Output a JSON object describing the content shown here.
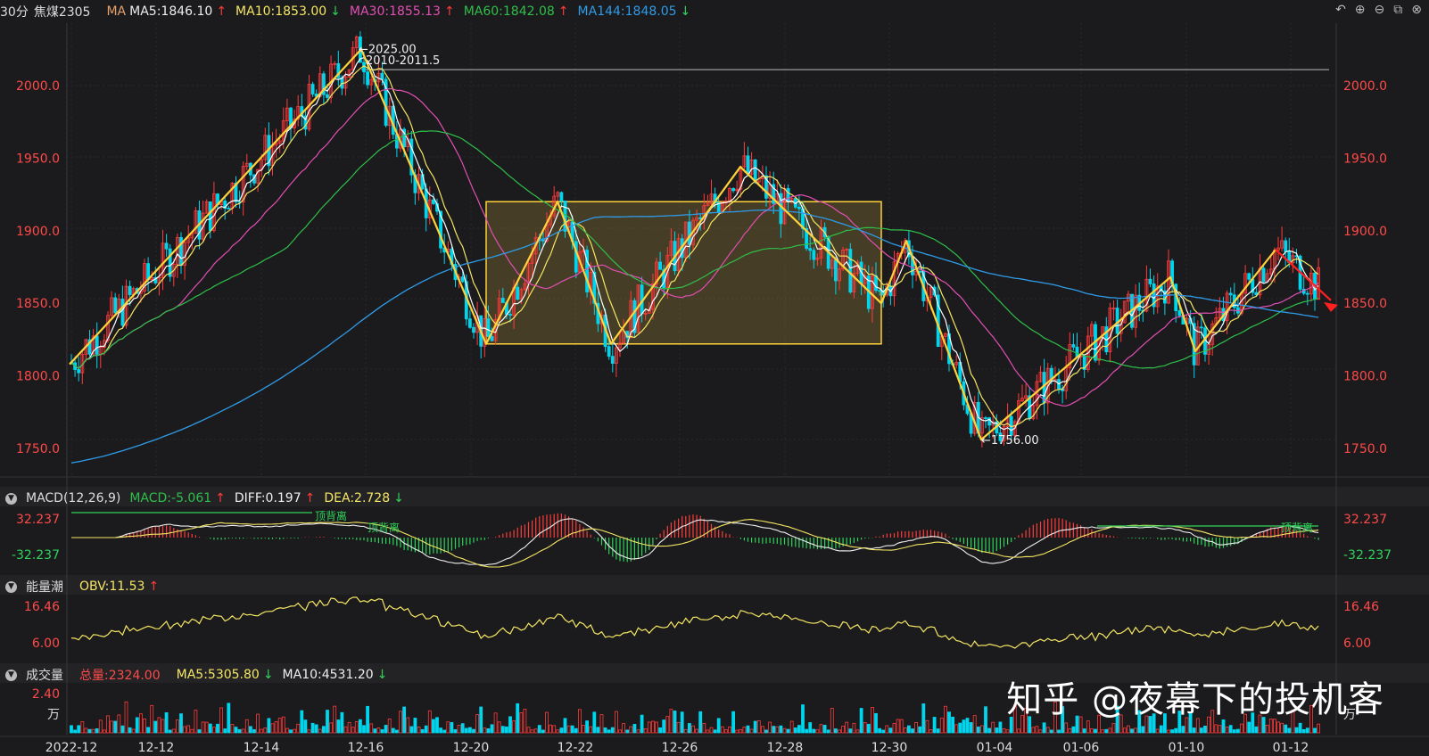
{
  "header": {
    "period": "30分",
    "symbol": "焦煤2305",
    "ma_label": "MA",
    "ma5": "MA5:1846.10",
    "ma10": "MA10:1853.00",
    "ma30": "MA30:1855.13",
    "ma60": "MA60:1842.08",
    "ma144": "MA144:1848.05"
  },
  "toolbar": {
    "undo": "↶",
    "zoom_in": "⊕",
    "zoom_out": "⊖",
    "layout": "⧉",
    "close": "⊗"
  },
  "price_axis": {
    "ticks": [
      "2000.0",
      "1950.0",
      "1900.0",
      "1850.0",
      "1800.0",
      "1750.0"
    ]
  },
  "annotations": {
    "high": "←2025.00",
    "range": "2010-2011.5",
    "low": "←1756.00"
  },
  "macd_panel": {
    "title": "MACD(12,26,9)",
    "macd": "MACD:-5.061",
    "diff": "DIFF:0.197",
    "dea": "DEA:2.728",
    "top": "32.237",
    "bottom": "-32.237",
    "div_label_1": "顶背离",
    "div_label_2": "顶背离",
    "div_label_3": "顶背离"
  },
  "obv_panel": {
    "title": "能量潮",
    "obv": "OBV:11.53",
    "top": "16.46",
    "bottom": "6.00"
  },
  "vol_panel": {
    "title": "成交量",
    "total": "总量:2324.00",
    "ma5": "MA5:5305.80",
    "ma10": "MA10:4531.20",
    "top": "2.40",
    "unit": "万"
  },
  "x_axis": {
    "labels": [
      "2022-12",
      "12-12",
      "12-14",
      "12-16",
      "12-20",
      "12-22",
      "12-26",
      "12-28",
      "12-30",
      "01-04",
      "01-06",
      "01-10",
      "01-12"
    ]
  },
  "watermark": "知乎 @夜幕下的投机客",
  "colors": {
    "up": "#ff3b3b",
    "down": "#00d5ee",
    "ma5": "#ffffff",
    "ma10": "#f5e663",
    "ma30": "#e24fb3",
    "ma60": "#2fbf4a",
    "ma144": "#2f9be8",
    "pattern": "#ffd23a",
    "arrow": "#ff2020",
    "axis_text": "#ff4a4a"
  },
  "chart_data": {
    "type": "candlestick",
    "title": "焦煤2305 30分",
    "y_range": [
      1735,
      2040
    ],
    "categories": [
      "2022-12",
      "12-12",
      "12-14",
      "12-16",
      "12-20",
      "12-22",
      "12-26",
      "12-28",
      "12-30",
      "01-04",
      "01-06",
      "01-10",
      "01-12"
    ],
    "key_points": [
      {
        "x": "2022-12",
        "y": 1808
      },
      {
        "x": "12-16",
        "y": 2025
      },
      {
        "x": "12-20",
        "y": 1822
      },
      {
        "x": "12-22",
        "y": 1920
      },
      {
        "x": "12-22",
        "y": 1822
      },
      {
        "x": "12-26",
        "y": 1944
      },
      {
        "x": "12-30",
        "y": 1850
      },
      {
        "x": "12-30",
        "y": 1893
      },
      {
        "x": "01-04",
        "y": 1756
      },
      {
        "x": "01-06",
        "y": 1868
      },
      {
        "x": "01-10",
        "y": 1817
      },
      {
        "x": "01-12",
        "y": 1887
      },
      {
        "x": "01-12",
        "y": 1850
      }
    ],
    "consolidation_box": {
      "y_low": 1822,
      "y_high": 1920
    },
    "resistance_line": {
      "y": 2011
    }
  }
}
